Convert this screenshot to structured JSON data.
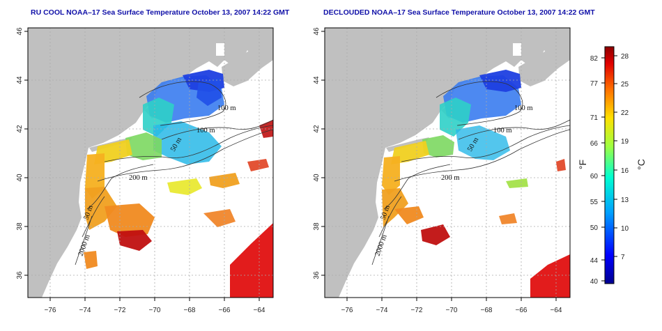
{
  "panels": [
    {
      "id": "ru-cool",
      "title": "RU COOL NOAA–17 Sea Surface Temperature October 13, 2007 14:22 GMT",
      "contour_labels": [
        "100 m",
        "100 m",
        "50 m",
        "200 m",
        "50 m",
        "2000 m"
      ]
    },
    {
      "id": "declouded",
      "title": "DECLOUDED NOAA–17 Sea Surface Temperature October 13, 2007 14:22 GMT",
      "contour_labels": [
        "100 m",
        "100 m",
        "50 m",
        "200 m",
        "50 m",
        "2000 m"
      ]
    }
  ],
  "axes": {
    "x_ticks": [
      "−76",
      "−74",
      "−72",
      "−70",
      "−68",
      "−66",
      "−64"
    ],
    "y_ticks": [
      "46",
      "44",
      "42",
      "40",
      "38",
      "36"
    ]
  },
  "colorbar": {
    "f_label": "°F",
    "c_label": "°C",
    "f_ticks": [
      "82",
      "77",
      "71",
      "66",
      "60",
      "55",
      "50",
      "44",
      "40"
    ],
    "c_ticks": [
      "28",
      "25",
      "22",
      "19",
      "16",
      "13",
      "10",
      "7"
    ]
  },
  "colors": {
    "land": "#c0c0c0",
    "ocean": "#ffffff",
    "title": "#1010a8",
    "grid": "#aaaaaa"
  }
}
